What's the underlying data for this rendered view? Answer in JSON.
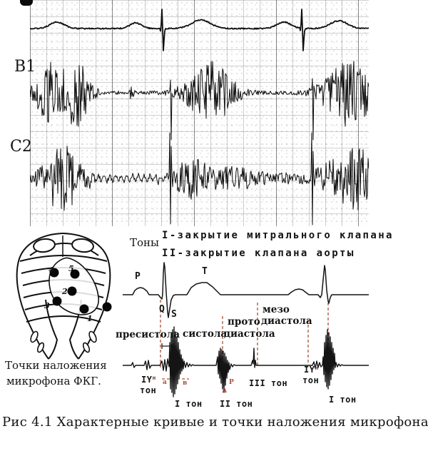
{
  "strip_chart": {
    "trace1_label": "B1",
    "trace2_label": "C2"
  },
  "legend": {
    "tones_label": "Тоны",
    "line1": "I-закрытие митрального клапана",
    "line2": "II-закрытие клапана аорты"
  },
  "ecg_labels": {
    "p": "P",
    "q": "Q",
    "s": "S",
    "t": "T"
  },
  "phases": {
    "presystole": "пресистола",
    "systole": "систола",
    "proto_line1": "прото",
    "proto_line2": "диастола",
    "mezo_line1": "мезо",
    "mezo_line2": "диастола"
  },
  "tones": {
    "tone4_1a": "IY",
    "tone4_1_sup": "н",
    "tone4_1b": "тон",
    "tone1_1": "I тон",
    "tone2": "II тон",
    "tone3": "III тон",
    "tone4_2a": "IY",
    "tone4_2_sup": "н",
    "tone4_2b": "тон",
    "tone1_2": "I тон",
    "marker_a": "а",
    "marker_v": "в",
    "marker_A": "А",
    "marker_P": "Р"
  },
  "ribcage": {
    "points": [
      {
        "label": "1"
      },
      {
        "label": "2"
      },
      {
        "label": "3"
      },
      {
        "label": "4"
      },
      {
        "label": "5"
      }
    ],
    "caption_line1": "Точки наложения",
    "caption_line2": "микрофона ФКГ."
  },
  "figure_caption": "Рис 4.1 Характерные кривые и точки наложения микрофона.",
  "colors": {
    "dash": "#a8503a",
    "ink": "#141414"
  }
}
